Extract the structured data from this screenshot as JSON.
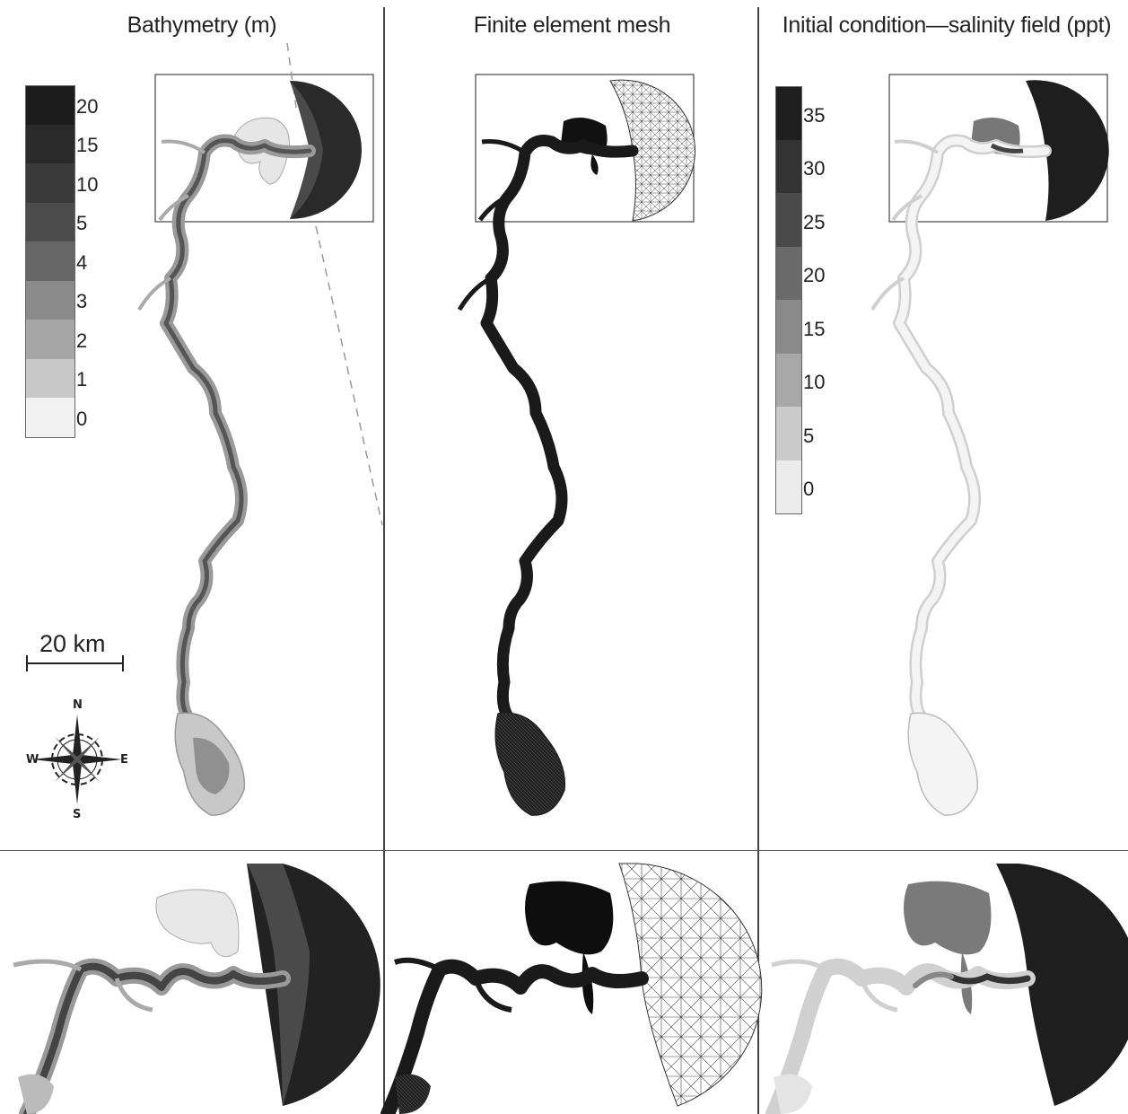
{
  "panels": {
    "bathymetry": {
      "title": "Bathymetry (m)"
    },
    "mesh": {
      "title": "Finite element mesh"
    },
    "salinity": {
      "title": "Initial condition—salinity field (ppt)"
    }
  },
  "bathymetry_legend": {
    "ticks": [
      "20",
      "15",
      "10",
      "5",
      "4",
      "3",
      "2",
      "1",
      "0"
    ],
    "colors": [
      "#1c1c1c",
      "#2a2a2a",
      "#3a3a3a",
      "#4c4c4c",
      "#666666",
      "#8a8a8a",
      "#a6a6a6",
      "#c8c8c8",
      "#f2f2f2"
    ]
  },
  "salinity_legend": {
    "ticks": [
      "35",
      "30",
      "25",
      "20",
      "15",
      "10",
      "5",
      "0"
    ],
    "colors": [
      "#1e1e1e",
      "#333333",
      "#4a4a4a",
      "#6a6a6a",
      "#8a8a8a",
      "#a8a8a8",
      "#cacaca",
      "#ececec"
    ]
  },
  "scale_bar": {
    "label": "20 km"
  },
  "compass": {
    "n": "N",
    "s": "S",
    "e": "E",
    "w": "W"
  }
}
